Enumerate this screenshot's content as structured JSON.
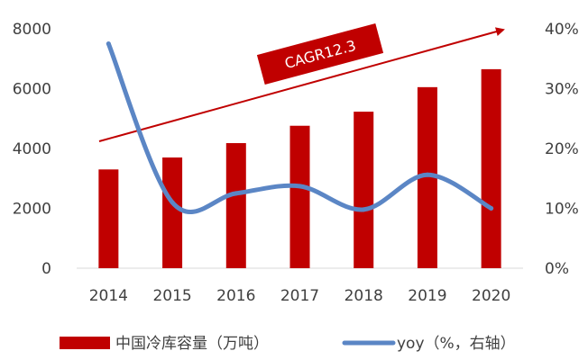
{
  "chart_data": {
    "type": "bar",
    "categories": [
      "2014",
      "2015",
      "2016",
      "2017",
      "2018",
      "2019",
      "2020"
    ],
    "series": [
      {
        "name": "中国冷库容量（万吨）",
        "type": "bar",
        "axis": "left",
        "values": [
          3300,
          3700,
          4180,
          4760,
          5230,
          6050,
          6650
        ],
        "color": "#c00000"
      },
      {
        "name": "yoy（%，右轴）",
        "type": "line",
        "axis": "right",
        "values": [
          37.5,
          11.0,
          12.5,
          13.7,
          9.8,
          15.6,
          10.0
        ],
        "color": "#5b86c5"
      }
    ],
    "y_left": {
      "ticks": [
        "0",
        "2000",
        "4000",
        "6000",
        "8000"
      ],
      "ylim": [
        0,
        8000
      ]
    },
    "y_right": {
      "ticks": [
        "0%",
        "10%",
        "20%",
        "30%",
        "40%"
      ],
      "ylim": [
        0,
        40
      ]
    },
    "annotation": {
      "text": "CAGR12.3",
      "arrow_color": "#c00000",
      "badge_color": "#c00000"
    },
    "legend_position": "bottom",
    "grid": false
  }
}
